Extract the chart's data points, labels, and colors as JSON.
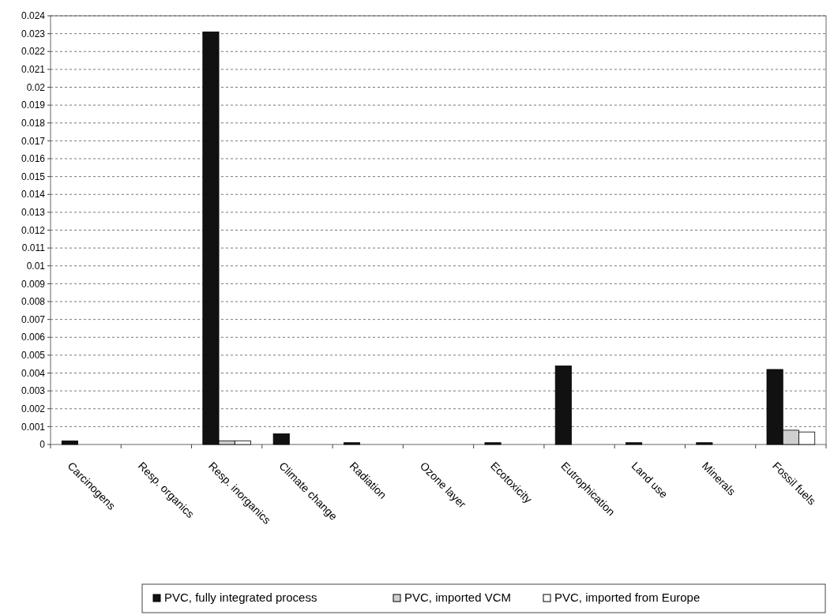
{
  "chart_data": {
    "type": "bar",
    "categories": [
      "Carcinogens",
      "Resp. organics",
      "Resp. inorganics",
      "Climate change",
      "Radiation",
      "Ozone layer",
      "Ecotoxicity",
      "Eutrophication",
      "Land use",
      "Minerals",
      "Fossil fuels"
    ],
    "series": [
      {
        "name": "PVC, fully integrated process",
        "color": "#111111",
        "values": [
          0.0002,
          0,
          0.0231,
          0.0006,
          0.0001,
          0,
          0.0001,
          0.0044,
          0.0001,
          0.0001,
          0.0042
        ]
      },
      {
        "name": "PVC, imported VCM",
        "color": "#cfcfcf",
        "values": [
          0,
          0,
          0.0002,
          0,
          0,
          0,
          0,
          0,
          0,
          0,
          0.0008
        ]
      },
      {
        "name": "PVC, imported from Europe",
        "color": "#ffffff",
        "values": [
          0,
          0,
          0.0002,
          0,
          0,
          0,
          0,
          0,
          0,
          0,
          0.0007
        ]
      }
    ],
    "ylim": [
      0,
      0.024
    ],
    "yticks": [
      0,
      {
        "value": 0.001,
        "label": "0.001"
      },
      {
        "value": 0.002,
        "label": "0.002"
      },
      {
        "value": 0.003,
        "label": "0.003"
      },
      {
        "value": 0.004,
        "label": "0.004"
      },
      {
        "value": 0.005,
        "label": "0.005"
      },
      {
        "value": 0.006,
        "label": "0.006"
      },
      {
        "value": 0.007,
        "label": "0.007"
      },
      {
        "value": 0.008,
        "label": "0.008"
      },
      {
        "value": 0.009,
        "label": "0.009"
      },
      0.01,
      0.011,
      0.012,
      0.013,
      0.014,
      0.015,
      0.016,
      0.017,
      0.018,
      0.019,
      0.02,
      0.021,
      0.022,
      0.023,
      0.024
    ],
    "grid": "y",
    "legend": "bottom"
  }
}
